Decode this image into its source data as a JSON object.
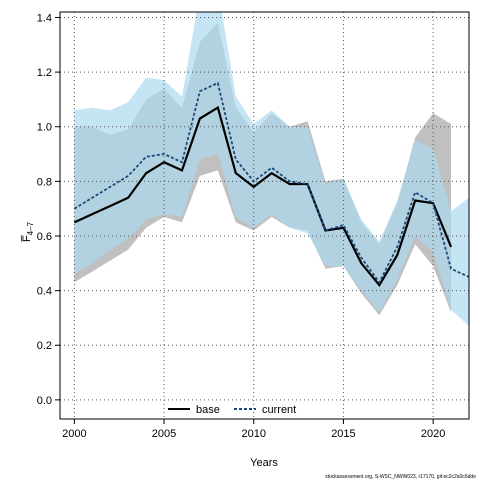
{
  "chart_data": {
    "type": "line",
    "xlabel": "Years",
    "ylabel": "F̅ 4-7",
    "ylabel_main": "F̅",
    "ylabel_sub": "4–7",
    "xlim": [
      1999.2,
      2022
    ],
    "ylim": [
      -0.07,
      1.42
    ],
    "xticks": [
      2000,
      2005,
      2010,
      2015,
      2020
    ],
    "yticks": [
      0.0,
      0.2,
      0.4,
      0.6,
      0.8,
      1.0,
      1.2,
      1.4
    ],
    "ytick_labels": [
      "0.0",
      "0.2",
      "0.4",
      "0.6",
      "0.8",
      "1.0",
      "1.2",
      "1.4"
    ],
    "grid": true,
    "legend_position": "bottom-center",
    "series": [
      {
        "name": "base",
        "color": "#000000",
        "line_style": "solid",
        "band_color": "#bdbdbd",
        "x": [
          2000,
          2001,
          2002,
          2003,
          2004,
          2005,
          2006,
          2007,
          2008,
          2009,
          2010,
          2011,
          2012,
          2013,
          2014,
          2015,
          2016,
          2017,
          2018,
          2019,
          2020,
          2021
        ],
        "values": [
          0.65,
          0.68,
          0.71,
          0.74,
          0.83,
          0.87,
          0.84,
          1.03,
          1.07,
          0.83,
          0.78,
          0.83,
          0.79,
          0.79,
          0.62,
          0.63,
          0.5,
          0.42,
          0.53,
          0.73,
          0.72,
          0.56
        ],
        "lower": [
          0.43,
          0.47,
          0.51,
          0.55,
          0.63,
          0.67,
          0.65,
          0.82,
          0.84,
          0.65,
          0.62,
          0.67,
          0.63,
          0.62,
          0.48,
          0.49,
          0.39,
          0.31,
          0.42,
          0.57,
          0.49,
          0.32
        ],
        "upper": [
          1.0,
          1.0,
          0.97,
          0.99,
          1.1,
          1.14,
          1.07,
          1.31,
          1.38,
          1.07,
          0.98,
          1.05,
          1.0,
          1.02,
          0.8,
          0.81,
          0.65,
          0.57,
          0.72,
          0.96,
          1.05,
          1.01
        ]
      },
      {
        "name": "current",
        "color": "#1a4a7a",
        "line_style": "dashed",
        "band_color": "#add8f0",
        "x": [
          2000,
          2001,
          2002,
          2003,
          2004,
          2005,
          2006,
          2007,
          2008,
          2009,
          2010,
          2011,
          2012,
          2013,
          2014,
          2015,
          2016,
          2017,
          2018,
          2019,
          2020,
          2021,
          2022
        ],
        "values": [
          0.7,
          0.74,
          0.78,
          0.82,
          0.89,
          0.9,
          0.87,
          1.13,
          1.16,
          0.88,
          0.8,
          0.85,
          0.8,
          0.79,
          0.62,
          0.64,
          0.52,
          0.43,
          0.56,
          0.76,
          0.72,
          0.48,
          0.45
        ],
        "lower": [
          0.46,
          0.5,
          0.55,
          0.59,
          0.66,
          0.68,
          0.67,
          0.88,
          0.9,
          0.67,
          0.63,
          0.68,
          0.63,
          0.61,
          0.49,
          0.49,
          0.4,
          0.32,
          0.44,
          0.6,
          0.54,
          0.33,
          0.27
        ],
        "upper": [
          1.06,
          1.07,
          1.06,
          1.09,
          1.18,
          1.17,
          1.11,
          1.49,
          1.51,
          1.11,
          1.01,
          1.06,
          1.0,
          1.0,
          0.79,
          0.81,
          0.66,
          0.58,
          0.73,
          0.95,
          0.92,
          0.69,
          0.74
        ]
      }
    ],
    "legend": [
      {
        "label": "base",
        "color": "#000000",
        "line_style": "solid"
      },
      {
        "label": "current",
        "color": "#1a4a7a",
        "line_style": "dashed"
      }
    ],
    "footer": "stockassessment.org, S-WSC_NWW023, r17170, git:ec2c2a0c6dde"
  }
}
